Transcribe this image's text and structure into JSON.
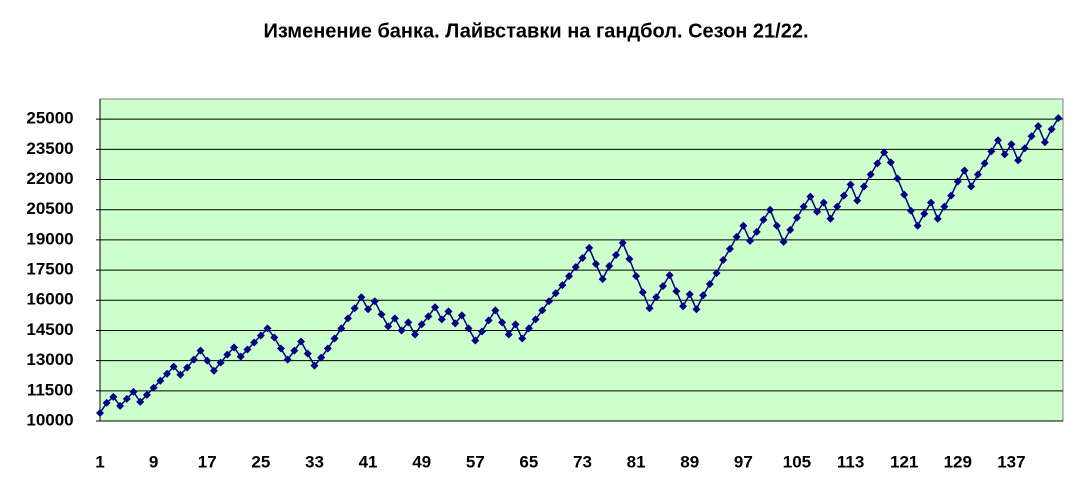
{
  "chart_data": {
    "type": "line",
    "title": "Изменение банка. Лайвставки на гандбол. Сезон 21/22.",
    "categories": [
      "1",
      null,
      null,
      null,
      null,
      null,
      null,
      null,
      "9",
      null,
      null,
      null,
      null,
      null,
      null,
      null,
      "17",
      null,
      null,
      null,
      null,
      null,
      null,
      null,
      "25",
      null,
      null,
      null,
      null,
      null,
      null,
      null,
      "33",
      null,
      null,
      null,
      null,
      null,
      null,
      null,
      "41",
      null,
      null,
      null,
      null,
      null,
      null,
      null,
      "49",
      null,
      null,
      null,
      null,
      null,
      null,
      null,
      "57",
      null,
      null,
      null,
      null,
      null,
      null,
      null,
      "65",
      null,
      null,
      null,
      null,
      null,
      null,
      null,
      "73",
      null,
      null,
      null,
      null,
      null,
      null,
      null,
      "81",
      null,
      null,
      null,
      null,
      null,
      null,
      null,
      "89",
      null,
      null,
      null,
      null,
      null,
      null,
      null,
      "97",
      null,
      null,
      null,
      null,
      null,
      null,
      null,
      "105",
      null,
      null,
      null,
      null,
      null,
      null,
      null,
      "113",
      null,
      null,
      null,
      null,
      null,
      null,
      null,
      "121",
      null,
      null,
      null,
      null,
      null,
      null,
      null,
      "129",
      null,
      null,
      null,
      null,
      null,
      null,
      null,
      "137",
      null,
      null,
      null,
      null,
      null,
      null,
      null
    ],
    "series": [
      {
        "color": "#000080",
        "values": [
          10400,
          10900,
          11200,
          10750,
          11100,
          11450,
          10950,
          11300,
          11650,
          12000,
          12350,
          12700,
          12300,
          12650,
          13050,
          13500,
          13000,
          12500,
          12900,
          13300,
          13650,
          13200,
          13550,
          13900,
          14250,
          14600,
          14150,
          13600,
          13050,
          13500,
          13950,
          13350,
          12750,
          13150,
          13600,
          14100,
          14600,
          15100,
          15600,
          16150,
          15550,
          15950,
          15300,
          14700,
          15100,
          14500,
          14900,
          14300,
          14800,
          15200,
          15650,
          15050,
          15450,
          14850,
          15250,
          14600,
          14000,
          14450,
          15000,
          15500,
          14900,
          14300,
          14800,
          14100,
          14600,
          15050,
          15500,
          15950,
          16350,
          16750,
          17200,
          17650,
          18100,
          18600,
          17800,
          17050,
          17700,
          18250,
          18850,
          18050,
          17200,
          16400,
          15600,
          16150,
          16700,
          17250,
          16450,
          15700,
          16300,
          15550,
          16250,
          16800,
          17350,
          18000,
          18550,
          19150,
          19700,
          18950,
          19400,
          20000,
          20500,
          19700,
          18900,
          19500,
          20100,
          20650,
          21150,
          20400,
          20850,
          20050,
          20650,
          21200,
          21750,
          20950,
          21650,
          22250,
          22800,
          23350,
          22850,
          22050,
          21250,
          20450,
          19700,
          20300,
          20850,
          20050,
          20650,
          21200,
          21900,
          22450,
          21650,
          22250,
          22800,
          23400,
          23950,
          23250,
          23750,
          22950,
          23550,
          24150,
          24650,
          23850,
          24500,
          25050
        ]
      }
    ],
    "ylim": [
      10000,
      26000
    ],
    "yticks": [
      10000,
      11500,
      13000,
      14500,
      16000,
      17500,
      19000,
      20500,
      22000,
      23500,
      25000
    ],
    "grid": true,
    "plot_background": "#ccffcc"
  }
}
